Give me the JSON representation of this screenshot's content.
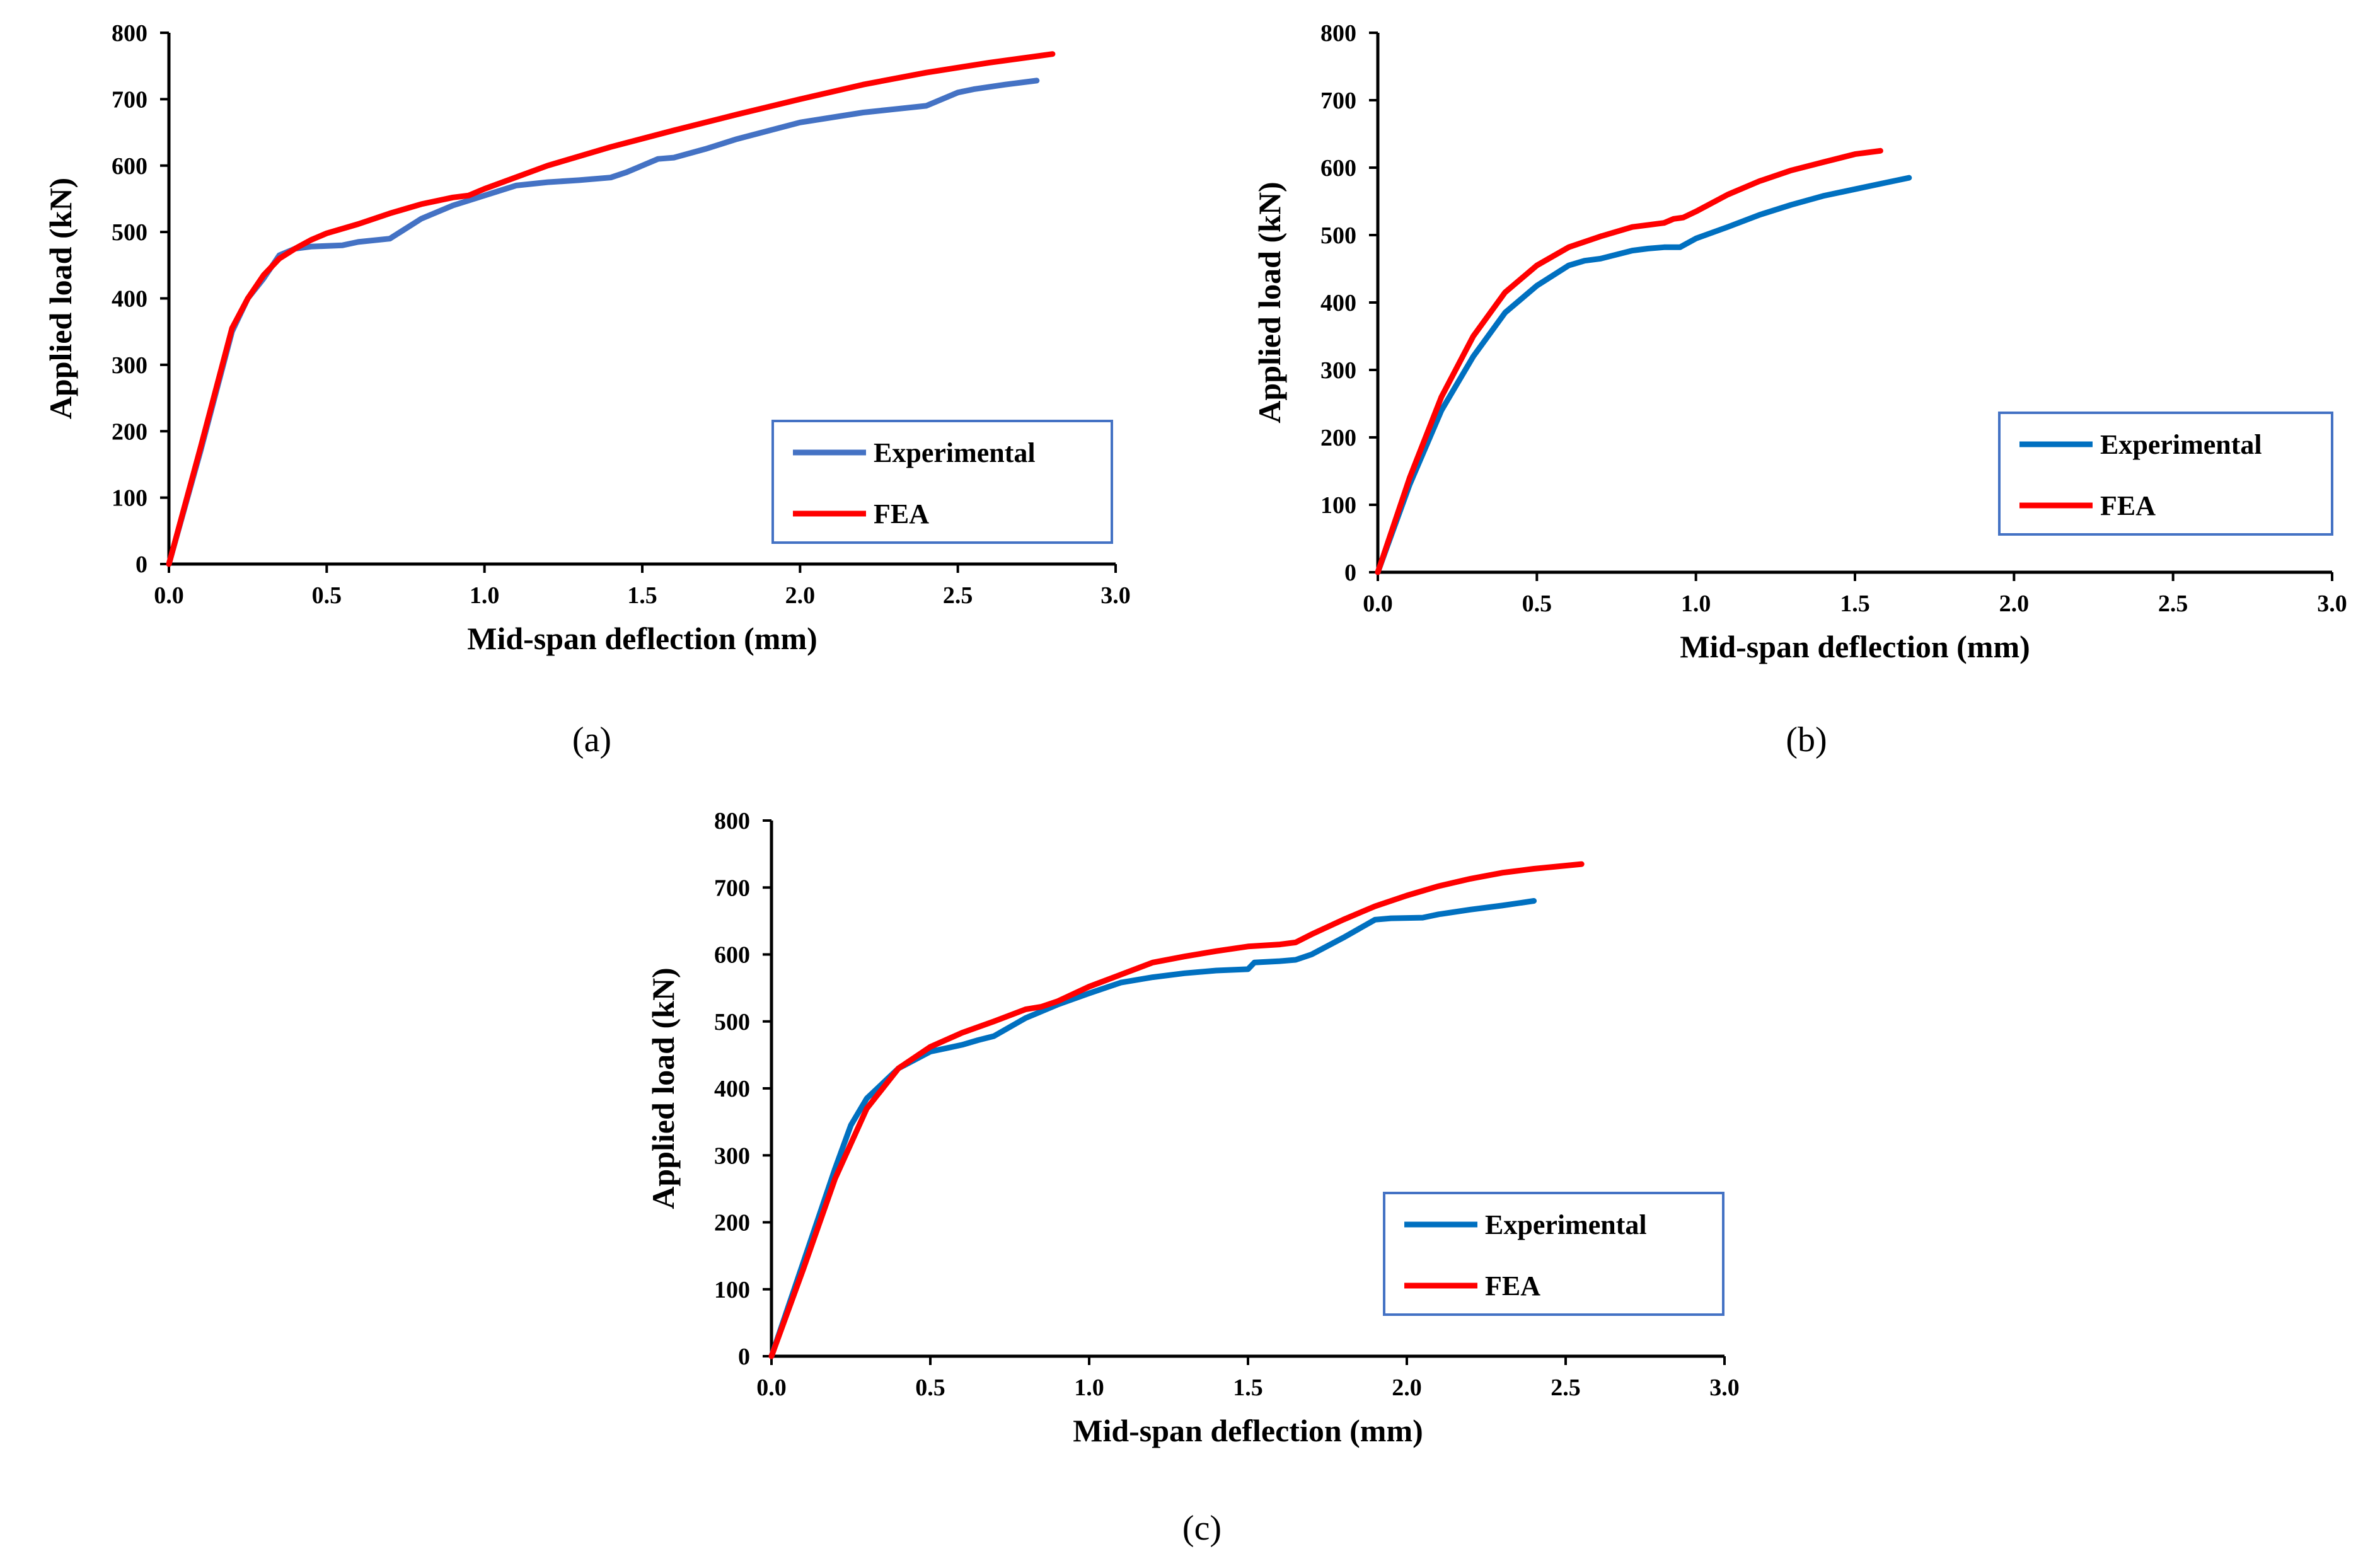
{
  "chart_data": [
    {
      "type": "line",
      "caption": "(a)",
      "xlabel": "Mid-span deflection (mm)",
      "ylabel": "Applied load (kN)",
      "xlim": [
        0,
        3.0
      ],
      "ylim": [
        0,
        800
      ],
      "xticks": [
        "0.0",
        "0.5",
        "1.0",
        "1.5",
        "2.0",
        "2.5",
        "3.0"
      ],
      "yticks": [
        "0",
        "100",
        "200",
        "300",
        "400",
        "500",
        "600",
        "700",
        "800"
      ],
      "legend_position": "bottom-right",
      "grid": false,
      "series": [
        {
          "name": "Experimental",
          "color": "#4472C4",
          "x": [
            0,
            0.1,
            0.2,
            0.25,
            0.3,
            0.35,
            0.4,
            0.45,
            0.55,
            0.6,
            0.7,
            0.8,
            0.9,
            1.0,
            1.1,
            1.2,
            1.3,
            1.4,
            1.45,
            1.55,
            1.6,
            1.7,
            1.8,
            2.0,
            2.2,
            2.3,
            2.4,
            2.5,
            2.55,
            2.65,
            2.75
          ],
          "y": [
            0,
            170,
            350,
            400,
            430,
            465,
            475,
            478,
            480,
            485,
            490,
            520,
            540,
            555,
            570,
            575,
            578,
            582,
            590,
            610,
            612,
            625,
            640,
            665,
            680,
            685,
            690,
            710,
            715,
            722,
            728
          ]
        },
        {
          "name": "FEA",
          "color": "#FF0000",
          "x": [
            0,
            0.1,
            0.2,
            0.25,
            0.3,
            0.35,
            0.4,
            0.45,
            0.5,
            0.6,
            0.7,
            0.8,
            0.9,
            0.95,
            1.0,
            1.2,
            1.4,
            1.6,
            1.8,
            2.0,
            2.2,
            2.4,
            2.6,
            2.8
          ],
          "y": [
            0,
            175,
            355,
            400,
            435,
            460,
            475,
            488,
            498,
            512,
            528,
            542,
            552,
            555,
            565,
            600,
            628,
            653,
            677,
            700,
            722,
            740,
            755,
            768
          ]
        }
      ]
    },
    {
      "type": "line",
      "caption": "(b)",
      "xlabel": "Mid-span deflection (mm)",
      "ylabel": "Applied load (kN)",
      "xlim": [
        0,
        3.0
      ],
      "ylim": [
        0,
        800
      ],
      "xticks": [
        "0.0",
        "0.5",
        "1.0",
        "1.5",
        "2.0",
        "2.5",
        "3.0"
      ],
      "yticks": [
        "0",
        "100",
        "200",
        "300",
        "400",
        "500",
        "600",
        "700",
        "800"
      ],
      "legend_position": "bottom-right",
      "grid": false,
      "series": [
        {
          "name": "Experimental",
          "color": "#0070C0",
          "x": [
            0,
            0.1,
            0.2,
            0.3,
            0.4,
            0.5,
            0.6,
            0.65,
            0.7,
            0.8,
            0.85,
            0.9,
            0.95,
            1.0,
            1.1,
            1.2,
            1.3,
            1.4,
            1.5,
            1.6,
            1.67
          ],
          "y": [
            0,
            130,
            240,
            320,
            385,
            425,
            455,
            462,
            465,
            477,
            480,
            482,
            482,
            495,
            512,
            530,
            545,
            558,
            568,
            578,
            585
          ]
        },
        {
          "name": "FEA",
          "color": "#FF0000",
          "x": [
            0,
            0.1,
            0.2,
            0.3,
            0.4,
            0.5,
            0.6,
            0.7,
            0.8,
            0.85,
            0.9,
            0.93,
            0.96,
            1.0,
            1.1,
            1.2,
            1.3,
            1.4,
            1.5,
            1.58
          ],
          "y": [
            0,
            140,
            260,
            350,
            415,
            455,
            482,
            498,
            512,
            515,
            518,
            524,
            526,
            535,
            560,
            580,
            596,
            608,
            620,
            625
          ]
        }
      ]
    },
    {
      "type": "line",
      "caption": "(c)",
      "xlabel": "Mid-span deflection (mm)",
      "ylabel": "Applied load (kN)",
      "xlim": [
        0,
        3.0
      ],
      "ylim": [
        0,
        800
      ],
      "xticks": [
        "0.0",
        "0.5",
        "1.0",
        "1.5",
        "2.0",
        "2.5",
        "3.0"
      ],
      "yticks": [
        "0",
        "100",
        "200",
        "300",
        "400",
        "500",
        "600",
        "700",
        "800"
      ],
      "legend_position": "bottom-right",
      "grid": false,
      "series": [
        {
          "name": "Experimental",
          "color": "#0070C0",
          "x": [
            0,
            0.1,
            0.2,
            0.25,
            0.3,
            0.4,
            0.5,
            0.55,
            0.6,
            0.65,
            0.7,
            0.8,
            0.9,
            1.0,
            1.1,
            1.2,
            1.3,
            1.4,
            1.5,
            1.52,
            1.6,
            1.65,
            1.7,
            1.8,
            1.9,
            1.95,
            2.05,
            2.1,
            2.2,
            2.3,
            2.4
          ],
          "y": [
            0,
            140,
            280,
            345,
            385,
            430,
            455,
            460,
            465,
            472,
            478,
            505,
            525,
            542,
            558,
            566,
            572,
            576,
            578,
            588,
            590,
            592,
            600,
            625,
            652,
            654,
            655,
            660,
            667,
            673,
            680
          ]
        },
        {
          "name": "FEA",
          "color": "#FF0000",
          "x": [
            0,
            0.1,
            0.2,
            0.3,
            0.4,
            0.5,
            0.6,
            0.7,
            0.8,
            0.85,
            0.9,
            1.0,
            1.1,
            1.2,
            1.3,
            1.4,
            1.5,
            1.6,
            1.65,
            1.7,
            1.8,
            1.9,
            2.0,
            2.1,
            2.2,
            2.3,
            2.4,
            2.55
          ],
          "y": [
            0,
            130,
            265,
            370,
            430,
            462,
            483,
            500,
            518,
            522,
            530,
            552,
            570,
            588,
            597,
            605,
            612,
            615,
            618,
            630,
            652,
            672,
            688,
            702,
            713,
            722,
            728,
            735
          ]
        }
      ]
    }
  ]
}
